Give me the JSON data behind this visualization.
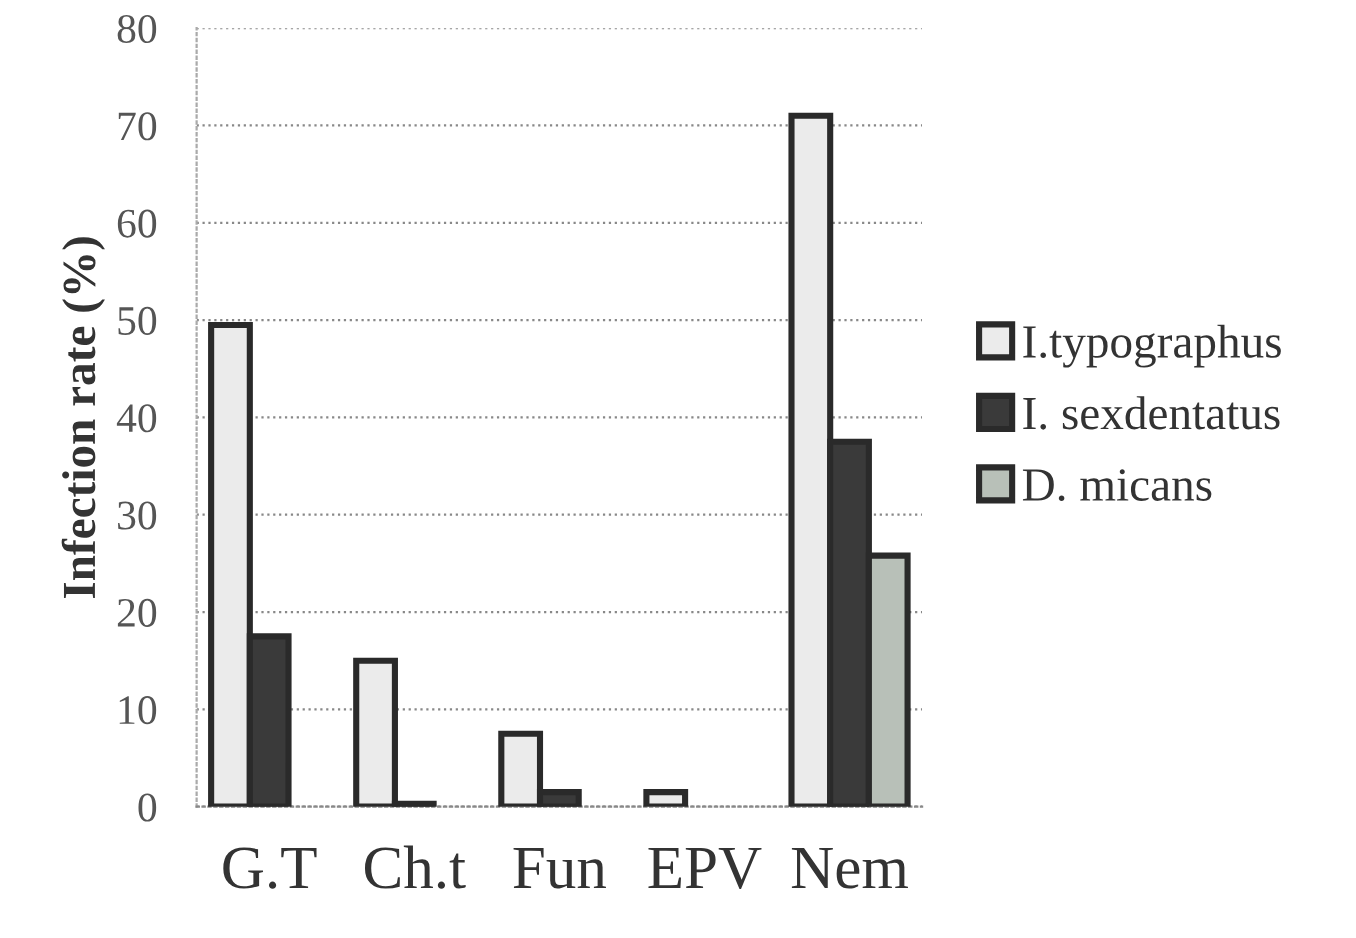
{
  "chart_data": {
    "type": "bar",
    "ylabel": "Infection rate (%)",
    "categories": [
      "G.T",
      "Ch.t",
      "Fun",
      "EPV",
      "Nem"
    ],
    "series": [
      {
        "name": "I.typographus",
        "color": "#ebebeb",
        "values": [
          49.5,
          15,
          7.5,
          1.5,
          71
        ]
      },
      {
        "name": "I. sexdentatus",
        "color": "#3a3a3a",
        "values": [
          17.5,
          0.3,
          1.5,
          null,
          37.5
        ]
      },
      {
        "name": "D. micans",
        "color": "#b8c0b8",
        "values": [
          null,
          null,
          null,
          null,
          25.8
        ]
      }
    ],
    "ylim": [
      0,
      80
    ],
    "yticks": [
      0,
      10,
      20,
      30,
      40,
      50,
      60,
      70,
      80
    ],
    "grid": "y",
    "legend": "right"
  }
}
